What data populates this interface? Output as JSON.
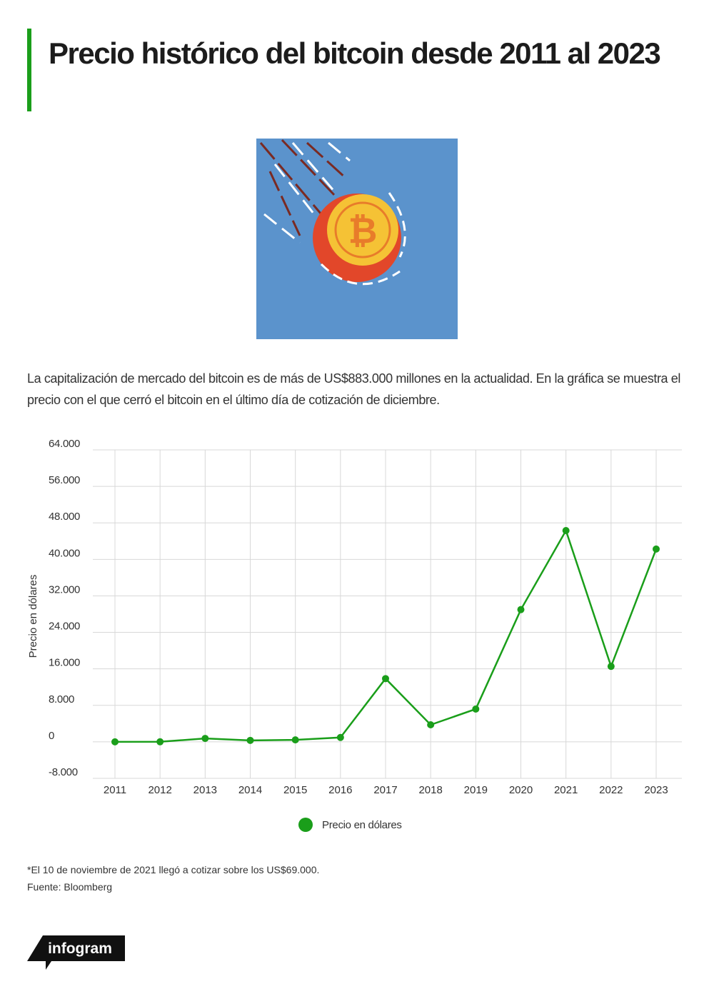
{
  "header": {
    "title": "Precio histórico del bitcoin desde 2011 al 2023"
  },
  "description": "La capitalización de mercado del bitcoin es de más de US$883.000 millones en la actualidad. En la gráfica se muestra el precio con el que cerró el bitcoin en el último día de cotización de diciembre.",
  "chart_data": {
    "type": "line",
    "y_label": "Precio en dólares",
    "categories": [
      "2011",
      "2012",
      "2013",
      "2014",
      "2015",
      "2016",
      "2017",
      "2018",
      "2019",
      "2020",
      "2021",
      "2022",
      "2023"
    ],
    "series": [
      {
        "name": "Precio en dólares",
        "color": "#1a9e1a",
        "values": [
          4.7,
          13.5,
          754,
          320,
          430,
          964,
          13860,
          3740,
          7190,
          28990,
          46310,
          16550,
          42260
        ]
      }
    ],
    "ylim": [
      -8000,
      64000
    ],
    "yticks": [
      {
        "value": -8000,
        "label": "-8.000"
      },
      0,
      {
        "value": 8000,
        "label": "8.000"
      },
      {
        "value": 16000,
        "label": "16.000"
      },
      {
        "value": 24000,
        "label": "24.000"
      },
      {
        "value": 32000,
        "label": "32.000"
      },
      {
        "value": 40000,
        "label": "40.000"
      },
      {
        "value": 48000,
        "label": "48.000"
      },
      {
        "value": 56000,
        "label": "56.000"
      },
      {
        "value": 64000,
        "label": "64.000"
      }
    ],
    "grid": true
  },
  "footer": {
    "note": "*El 10 de noviembre de 2021 llegó a cotizar sobre los US$69.000.",
    "source": "Fuente: Bloomberg",
    "logo": "infogram"
  }
}
